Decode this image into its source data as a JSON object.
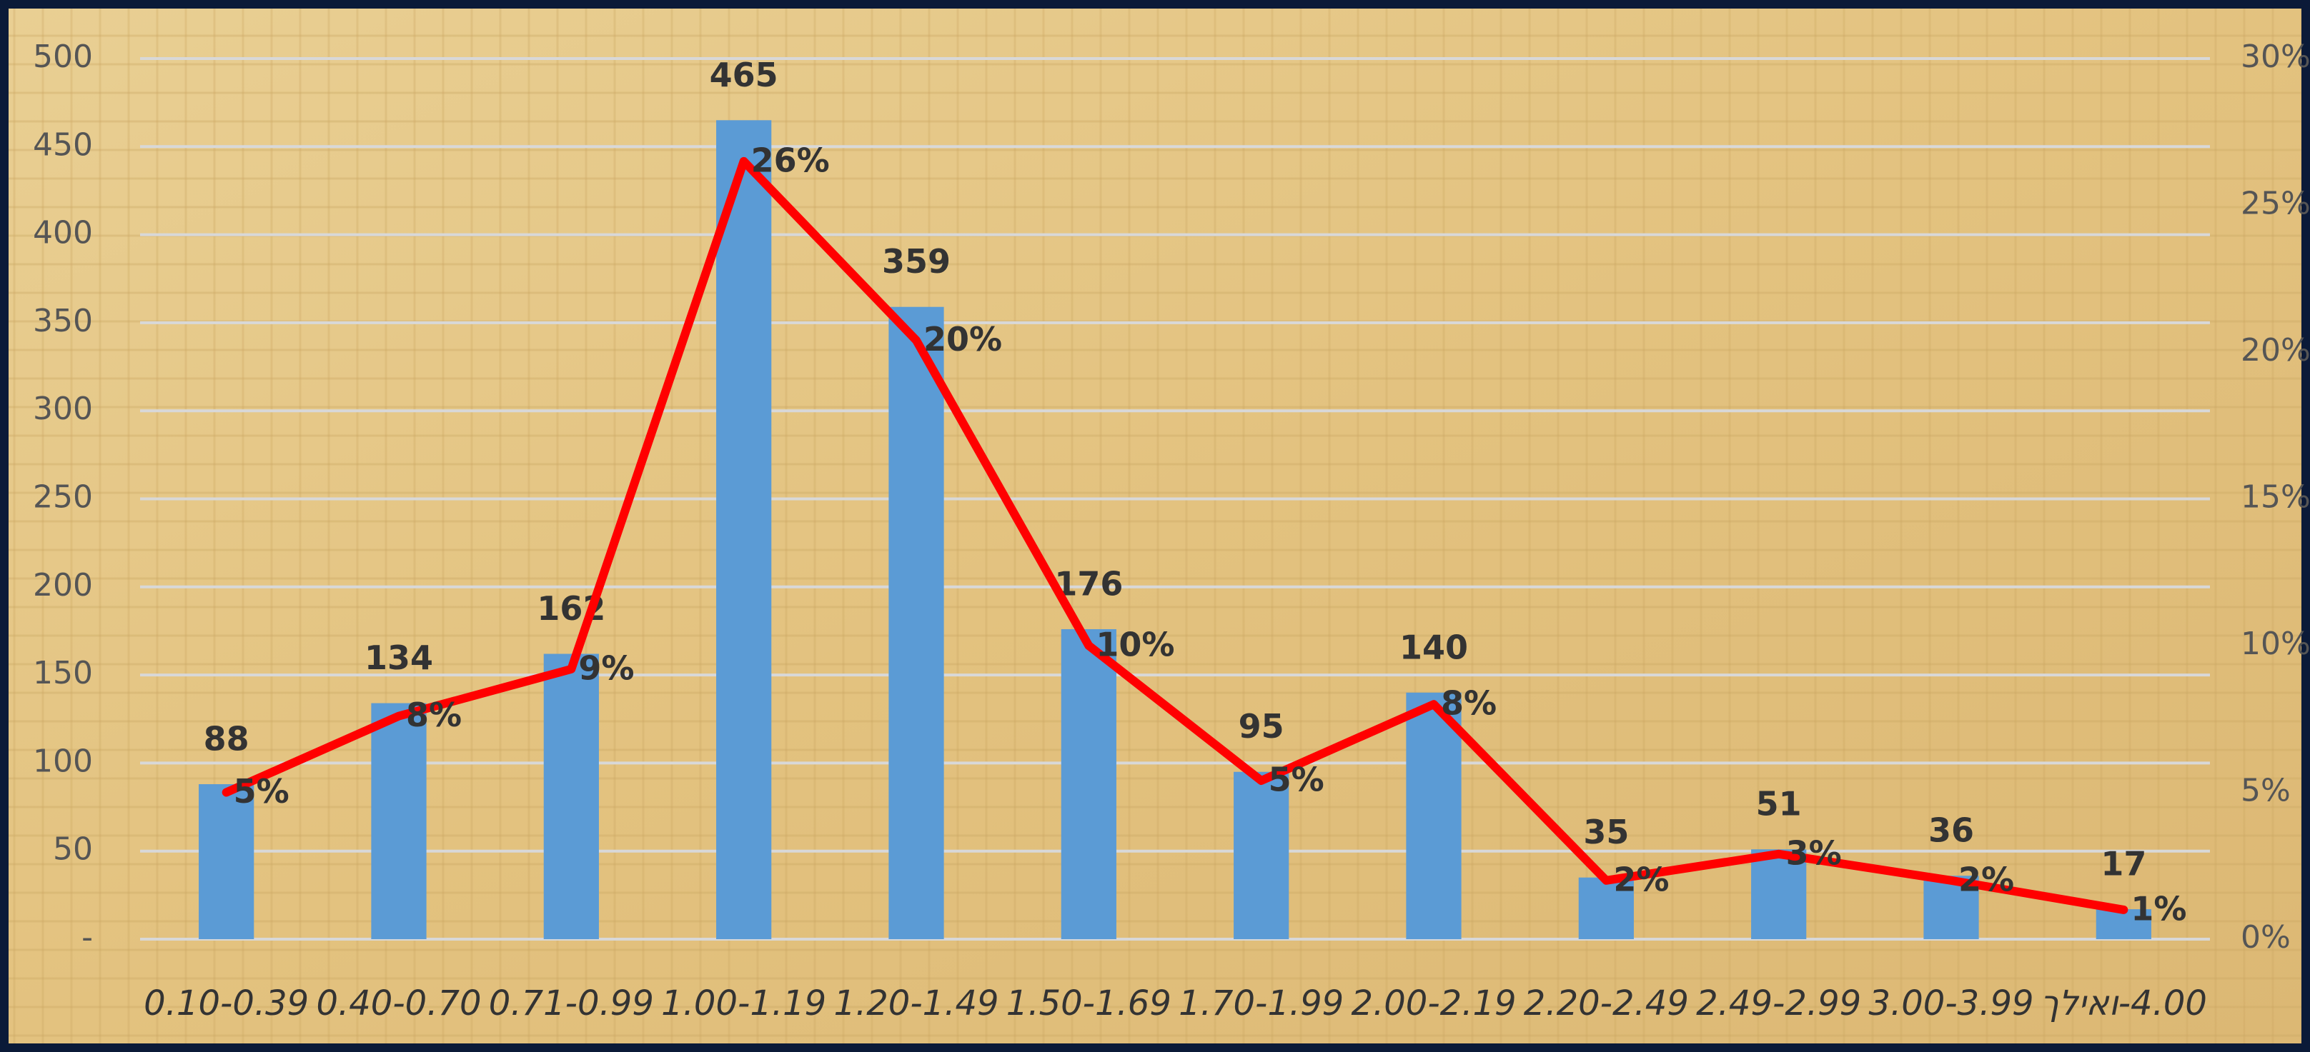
{
  "chart_data": {
    "type": "bar_line",
    "categories": [
      "0.10-0.39",
      "0.40-0.70",
      "0.71-0.99",
      "1.00-1.19",
      "1.20-1.49",
      "1.50-1.69",
      "1.70-1.99",
      "2.00-2.19",
      "2.20-2.49",
      "2.49-2.99",
      "3.00-3.99",
      "4.00-ואילך"
    ],
    "series": [
      {
        "type": "bar",
        "color": "#5b9bd5",
        "values": [
          88,
          134,
          162,
          465,
          359,
          176,
          95,
          140,
          35,
          51,
          36,
          17
        ]
      },
      {
        "type": "line",
        "axis": "y2",
        "color": "#ff0000",
        "values": [
          5.0,
          7.6,
          9.2,
          26.5,
          20.4,
          10.0,
          5.4,
          8.0,
          2.0,
          2.9,
          2.0,
          1.0
        ],
        "value_labels": [
          "5%",
          "8%",
          "9%",
          "26%",
          "20%",
          "10%",
          "5%",
          "8%",
          "2%",
          "3%",
          "2%",
          "1%"
        ]
      }
    ],
    "ylim": [
      0,
      500
    ],
    "yticks": [
      {
        "value": 0,
        "label": "-"
      },
      50,
      100,
      150,
      200,
      250,
      300,
      350,
      400,
      450,
      500
    ],
    "y2lim": [
      0,
      30
    ],
    "y2ticks": [
      {
        "value": 0,
        "label": "0%"
      },
      {
        "value": 5,
        "label": "5%"
      },
      {
        "value": 10,
        "label": "10%"
      },
      {
        "value": 15,
        "label": "15%"
      },
      {
        "value": 20,
        "label": "20%"
      },
      {
        "value": 25,
        "label": "25%"
      },
      {
        "value": 30,
        "label": "30%"
      }
    ],
    "grid": true
  }
}
